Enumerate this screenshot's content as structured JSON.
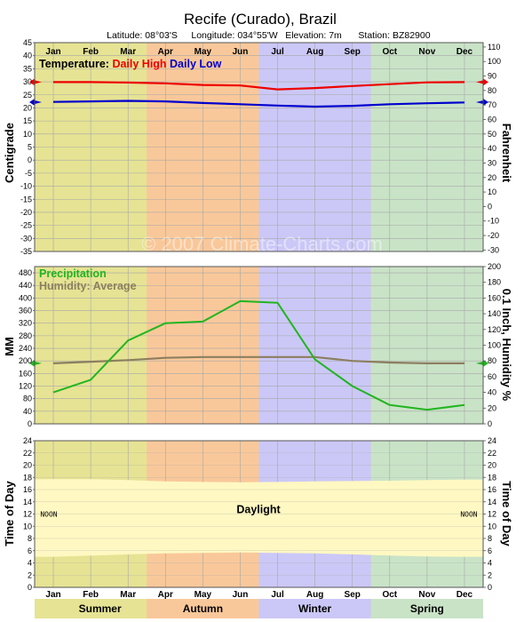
{
  "header": {
    "title": "Recife (Curado),  Brazil",
    "latitude": "Latitude: 08°03'S",
    "longitude": "Longitude: 034°55'W",
    "elevation": "Elevation: 7m",
    "station": "Station: BZ82900"
  },
  "watermark": "© 2007 Climate-Charts.com",
  "months": [
    "Jan",
    "Feb",
    "Mar",
    "Apr",
    "May",
    "Jun",
    "Jul",
    "Aug",
    "Sep",
    "Oct",
    "Nov",
    "Dec"
  ],
  "seasons": [
    {
      "name": "Summer",
      "color": "#e6e394",
      "from": 0,
      "to": 2.5
    },
    {
      "name": "Autumn",
      "color": "#f9c89a",
      "from": 2.5,
      "to": 5.5
    },
    {
      "name": "Winter",
      "color": "#cbc8f7",
      "from": 5.5,
      "to": 8.5
    },
    {
      "name": "Spring",
      "color": "#c9e3c7",
      "from": 8.5,
      "to": 11.5
    }
  ],
  "season_edge_color": "#e6e394",
  "chart_data": [
    {
      "type": "line",
      "title": "Temperature:",
      "ylabel": "Centigrade",
      "y2label": "Fahrenheit",
      "ylim": [
        -35,
        45
      ],
      "y2lim": [
        -31,
        113
      ],
      "yticks": [
        45,
        40,
        35,
        30,
        25,
        20,
        15,
        10,
        5,
        0,
        -5,
        -10,
        -15,
        -20,
        -25,
        -30,
        -35
      ],
      "y2ticks": [
        110,
        100,
        90,
        80,
        70,
        60,
        50,
        40,
        30,
        20,
        10,
        0,
        -10,
        -20,
        -30
      ],
      "categories": [
        "Jan",
        "Feb",
        "Mar",
        "Apr",
        "May",
        "Jun",
        "Jul",
        "Aug",
        "Sep",
        "Oct",
        "Nov",
        "Dec"
      ],
      "series": [
        {
          "name": "Daily High",
          "color": "#ee0000",
          "values": [
            29.9,
            29.9,
            29.7,
            29.4,
            28.8,
            28.6,
            27.1,
            27.6,
            28.4,
            29.1,
            29.8,
            29.9
          ]
        },
        {
          "name": "Daily Low",
          "color": "#0000cc",
          "values": [
            22.3,
            22.5,
            22.7,
            22.5,
            21.9,
            21.4,
            20.9,
            20.5,
            20.8,
            21.4,
            21.8,
            22.1
          ]
        }
      ],
      "grid": true
    },
    {
      "type": "line",
      "ylabel": "MM",
      "y2label": "0.1 Inch, Humidity %",
      "ylim": [
        0,
        500
      ],
      "y2lim": [
        0,
        200
      ],
      "yticks": [
        480,
        440,
        400,
        360,
        320,
        280,
        240,
        200,
        160,
        120,
        80,
        40,
        0
      ],
      "y2ticks": [
        200,
        180,
        160,
        140,
        120,
        100,
        80,
        60,
        40,
        20,
        0
      ],
      "categories": [
        "Jan",
        "Feb",
        "Mar",
        "Apr",
        "May",
        "Jun",
        "Jul",
        "Aug",
        "Sep",
        "Oct",
        "Nov",
        "Dec"
      ],
      "series": [
        {
          "name": "Precipitation",
          "color": "#22b51f",
          "axis": "left",
          "values": [
            100,
            140,
            265,
            320,
            325,
            390,
            385,
            205,
            120,
            60,
            45,
            60
          ]
        },
        {
          "name": "Humidity: Average",
          "color": "#8c7f5f",
          "axis": "right",
          "values": [
            77,
            79,
            81,
            84,
            85,
            85,
            85,
            85,
            80,
            78,
            77,
            77
          ]
        }
      ],
      "grid": true
    },
    {
      "type": "area",
      "title": "Daylight",
      "ylabel": "Time of Day",
      "y2label": "Time of Day",
      "ylim": [
        0,
        24
      ],
      "yticks": [
        24,
        22,
        20,
        18,
        16,
        14,
        12,
        10,
        8,
        6,
        4,
        2,
        0
      ],
      "categories": [
        "Jan",
        "Feb",
        "Mar",
        "Apr",
        "May",
        "Jun",
        "Jul",
        "Aug",
        "Sep",
        "Oct",
        "Nov",
        "Dec"
      ],
      "sunrise": [
        5.0,
        5.2,
        5.4,
        5.55,
        5.65,
        5.7,
        5.65,
        5.55,
        5.4,
        5.2,
        5.05,
        5.0
      ],
      "sunset": [
        17.7,
        17.7,
        17.55,
        17.35,
        17.25,
        17.2,
        17.25,
        17.35,
        17.4,
        17.45,
        17.55,
        17.65
      ],
      "noon_label": "NOON",
      "daylight_color": "#fff8c2"
    }
  ]
}
